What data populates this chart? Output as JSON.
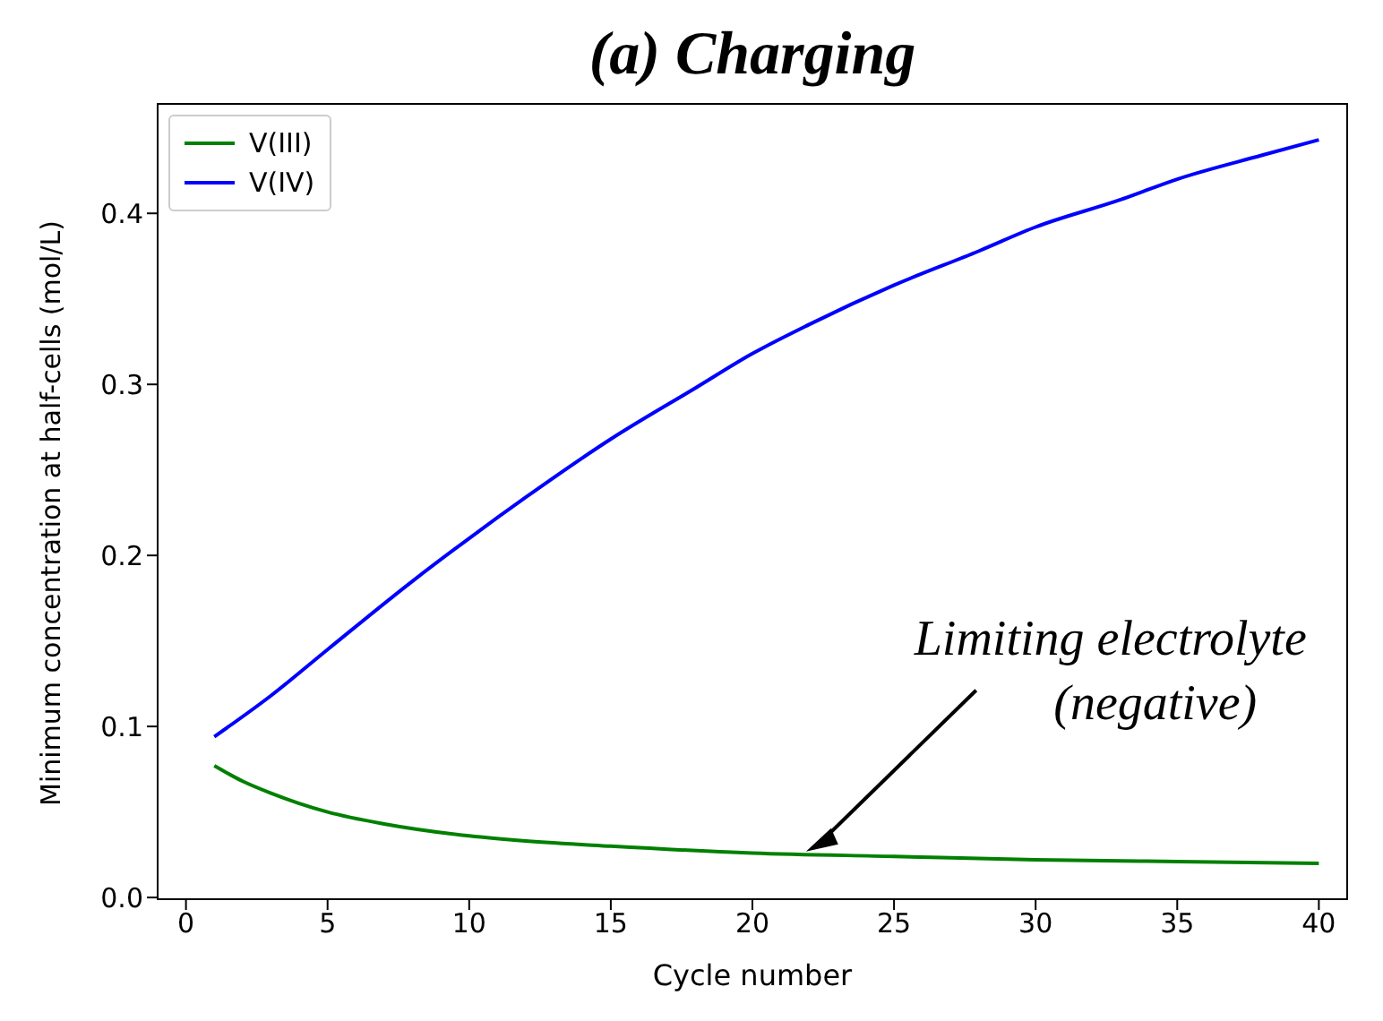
{
  "chart_data": {
    "type": "line",
    "title": "(a) Charging",
    "xlabel": "Cycle number",
    "ylabel": "Minimum concentration at half-cells (mol/L)",
    "xlim": [
      -1,
      41
    ],
    "xticks": [
      0,
      5,
      10,
      15,
      20,
      25,
      30,
      35,
      40
    ],
    "ylim": [
      -0.001,
      0.464
    ],
    "yticks": [
      {
        "value": 0,
        "label": "0.0"
      },
      {
        "value": 0.1,
        "label": "0.1"
      },
      {
        "value": 0.2,
        "label": "0.2"
      },
      {
        "value": 0.3,
        "label": "0.3"
      },
      {
        "value": 0.4,
        "label": "0.4"
      }
    ],
    "legend": "top left",
    "marker": "none",
    "line_style": "solid",
    "series": [
      {
        "name": "V(III)",
        "color": "#008000",
        "x": [
          1,
          2,
          3,
          4,
          5,
          7,
          10,
          12,
          15,
          20,
          25,
          30,
          35,
          40
        ],
        "values": [
          0.077,
          0.068,
          0.061,
          0.055,
          0.05,
          0.043,
          0.036,
          0.033,
          0.03,
          0.026,
          0.024,
          0.022,
          0.021,
          0.02
        ]
      },
      {
        "name": "V(IV)",
        "color": "#0000ff",
        "x": [
          1,
          3,
          5,
          8,
          10,
          12,
          15,
          18,
          20,
          22,
          25,
          28,
          30,
          33,
          35,
          38,
          40
        ],
        "values": [
          0.094,
          0.118,
          0.145,
          0.185,
          0.21,
          0.234,
          0.268,
          0.298,
          0.318,
          0.335,
          0.358,
          0.378,
          0.392,
          0.408,
          0.42,
          0.434,
          0.443
        ]
      }
    ],
    "annotations": [
      "Limiting electrolyte\n(negative)"
    ]
  }
}
